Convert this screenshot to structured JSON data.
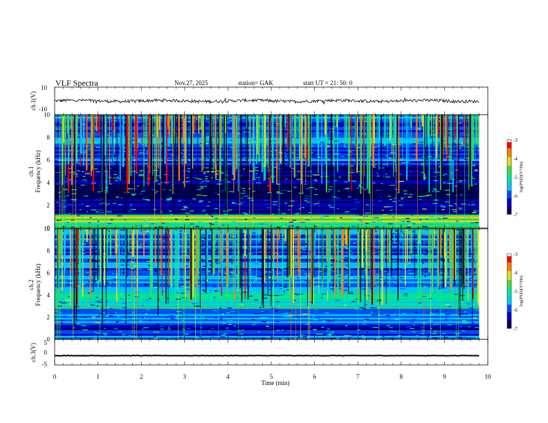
{
  "header": {
    "title": "VLF  Spectra",
    "date": "Nov.27, 2025",
    "station": "station= GAK",
    "start_ut": "start  UT  =    21: 50: 0"
  },
  "chart_data": [
    {
      "type": "line",
      "ylabel": "ch.1(V)",
      "xlim": [
        0,
        10
      ],
      "ylim": [
        -10,
        10
      ],
      "yticks": [
        "10",
        "-10"
      ],
      "baseline": 0,
      "description_values": {
        "typical_level": 0
      }
    },
    {
      "type": "heatmap",
      "ylabel": "ch.1\nFrequency  (kHz)",
      "ylabel_line1": "ch.1",
      "ylabel_line2": "Frequency  (kHz)",
      "xlim": [
        0,
        9.8
      ],
      "ylim": [
        0,
        10
      ],
      "yticks": [
        "0",
        "2",
        "4",
        "6",
        "8",
        "10"
      ],
      "colorbar": {
        "label": "log(PSD)(V²/Hz)",
        "range": [
          -7,
          -3
        ],
        "ticks": [
          "-3",
          "-4",
          "-5",
          "-6",
          "-7"
        ]
      },
      "bands_khz": [
        {
          "from": 0,
          "to": 1.2,
          "level": -4.5
        },
        {
          "from": 1.2,
          "to": 5.4,
          "level": -6.8
        },
        {
          "from": 5.4,
          "to": 6.6,
          "level": -6.0
        },
        {
          "from": 6.6,
          "to": 10,
          "level": -5.8
        }
      ]
    },
    {
      "type": "heatmap",
      "ylabel_line1": "ch.2",
      "ylabel_line2": "Frequency  (kHz)",
      "xlim": [
        0,
        9.8
      ],
      "ylim": [
        0,
        10
      ],
      "yticks": [
        "0",
        "2",
        "4",
        "6",
        "8",
        "10"
      ],
      "colorbar": {
        "label": "log(PSD)(V²/Hz)",
        "range": [
          -7,
          -3
        ],
        "ticks": [
          "-3",
          "-4",
          "-5",
          "-6",
          "-7"
        ]
      },
      "bands_khz": [
        {
          "from": 0,
          "to": 1.0,
          "level": -6.2
        },
        {
          "from": 1.0,
          "to": 2.6,
          "level": -6.0
        },
        {
          "from": 2.6,
          "to": 4.4,
          "level": -5.3
        },
        {
          "from": 4.4,
          "to": 6.6,
          "level": -5.6
        },
        {
          "from": 6.6,
          "to": 10,
          "level": -5.9
        }
      ]
    },
    {
      "type": "line",
      "ylabel": "ch.3(V)",
      "xlabel": "Time  (min)",
      "xlim": [
        0,
        10
      ],
      "ylim": [
        -5,
        5
      ],
      "yticks": [
        "5",
        "0",
        "-5"
      ],
      "xticks": [
        "0",
        "1",
        "2",
        "3",
        "4",
        "5",
        "6",
        "7",
        "8",
        "9",
        "10"
      ],
      "baseline": -1.5
    }
  ],
  "colors": {
    "axis": "#000000",
    "signal": "#000000",
    "cmap": [
      "#000050",
      "#0000c8",
      "#0050ff",
      "#00c8ff",
      "#00e8a0",
      "#40e040",
      "#e0e020",
      "#ff8000",
      "#ff0000",
      "#ffffff"
    ]
  }
}
